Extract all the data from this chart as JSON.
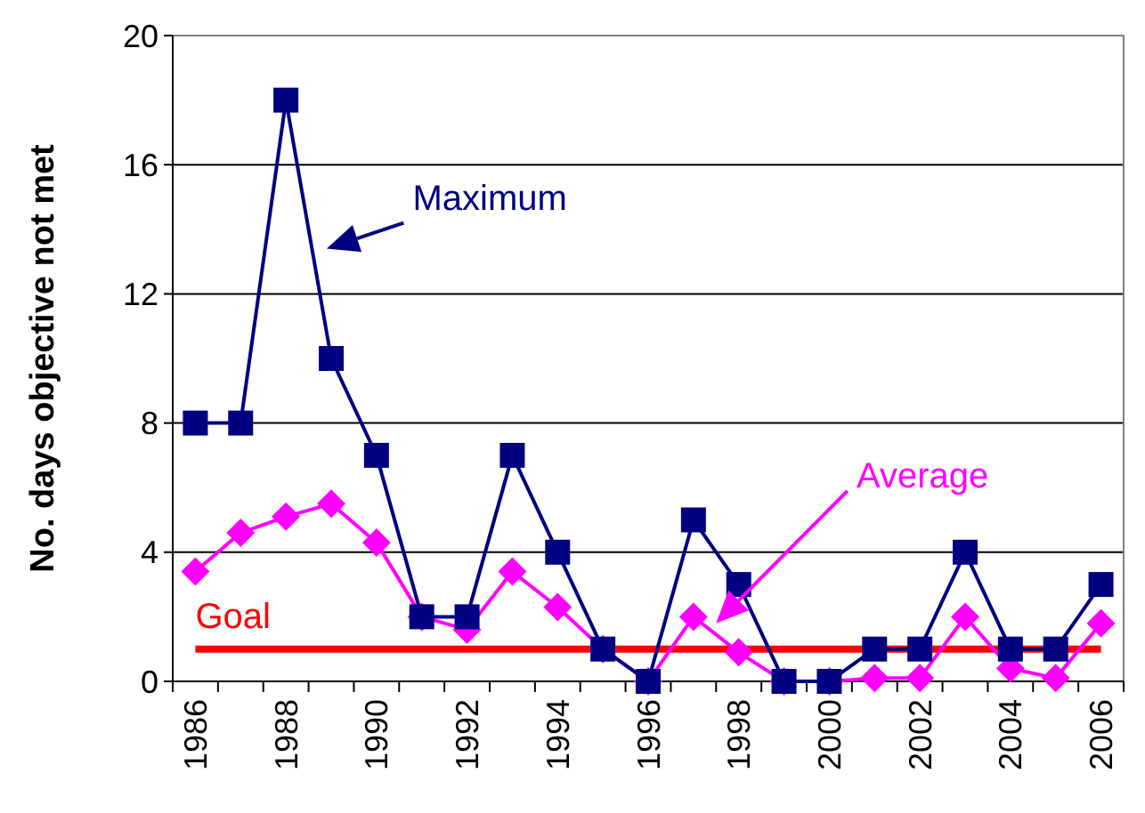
{
  "chart_data": {
    "type": "line",
    "ylabel": "No. days objective not met",
    "categories": [
      "1986",
      null,
      "1988",
      null,
      "1990",
      null,
      "1992",
      null,
      "1994",
      null,
      "1996",
      null,
      "1998",
      null,
      "2000",
      null,
      "2002",
      null,
      "2004",
      null,
      "2006"
    ],
    "series": [
      {
        "name": "Maximum",
        "color": "#000080",
        "marker": "square",
        "values": [
          8,
          8,
          18,
          10,
          7,
          2,
          2,
          7,
          4,
          1,
          0,
          5,
          3,
          0,
          0,
          1,
          1,
          4,
          1,
          1,
          3
        ]
      },
      {
        "name": "Average",
        "color": "#ff00ff",
        "marker": "diamond",
        "values": [
          3.4,
          4.6,
          5.1,
          5.5,
          4.3,
          2.0,
          1.6,
          3.4,
          2.3,
          1.0,
          0,
          2.0,
          0.9,
          0,
          0,
          0.1,
          0.1,
          2.0,
          0.4,
          0.1,
          1.8
        ]
      }
    ],
    "ylim": [
      0,
      20
    ],
    "yticks": [
      0,
      4,
      8,
      12,
      16,
      20
    ],
    "grid": "y",
    "legend": false,
    "ref_lines": [
      {
        "axis": "y",
        "value": 1,
        "label": "Goal",
        "color": "#ff0000"
      }
    ]
  }
}
